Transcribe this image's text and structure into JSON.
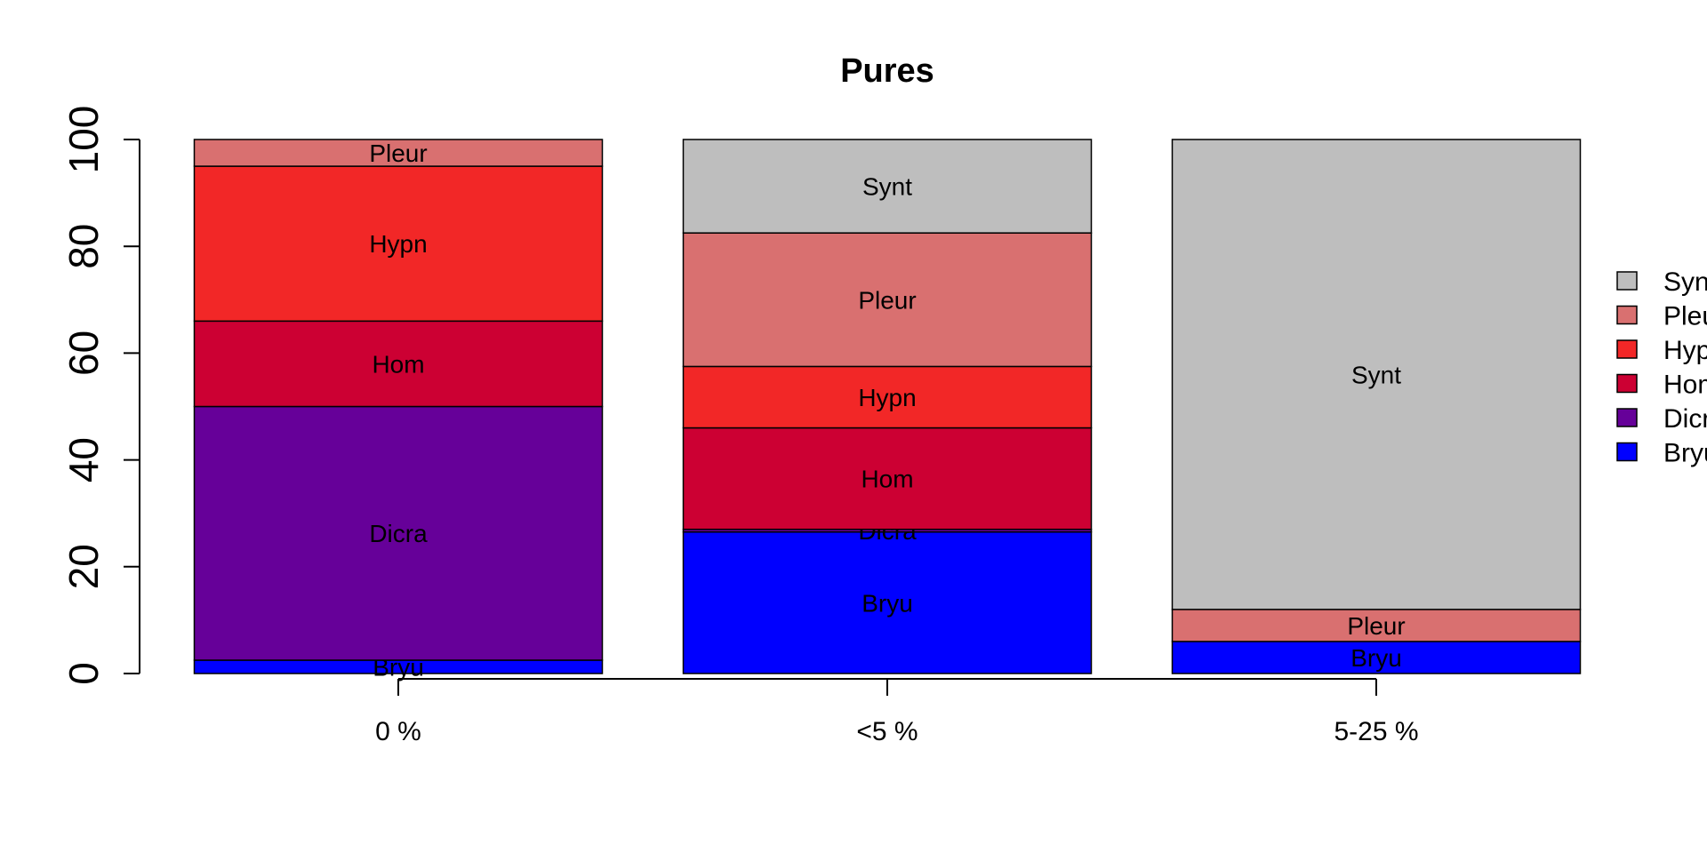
{
  "chart_data": {
    "type": "bar",
    "stacked": true,
    "title": "Pures",
    "xlabel": "",
    "ylabel": "",
    "ylim": [
      0,
      100
    ],
    "yticks": [
      "0",
      "20",
      "40",
      "60",
      "80",
      "100"
    ],
    "categories": [
      "0 %",
      "<5 %",
      "5-25 %"
    ],
    "grid": false,
    "legend_position": "right",
    "series": [
      {
        "name": "Bryu",
        "color": "#0000FF",
        "values": [
          2.5,
          26.5,
          6
        ]
      },
      {
        "name": "Dicra",
        "color": "#660099",
        "values": [
          47.5,
          0.5,
          0
        ]
      },
      {
        "name": "Hom",
        "color": "#CC0033",
        "values": [
          16,
          19,
          0
        ]
      },
      {
        "name": "Hypn",
        "color": "#F22727",
        "values": [
          29,
          11.5,
          0
        ]
      },
      {
        "name": "Pleur",
        "color": "#D97070",
        "values": [
          5,
          25,
          6
        ]
      },
      {
        "name": "Synt",
        "color": "#BEBEBE",
        "values": [
          0,
          17.5,
          88
        ]
      }
    ],
    "legend_order": [
      "Synt",
      "Pleur",
      "Hypn",
      "Hom",
      "Dicra",
      "Bryu"
    ]
  }
}
